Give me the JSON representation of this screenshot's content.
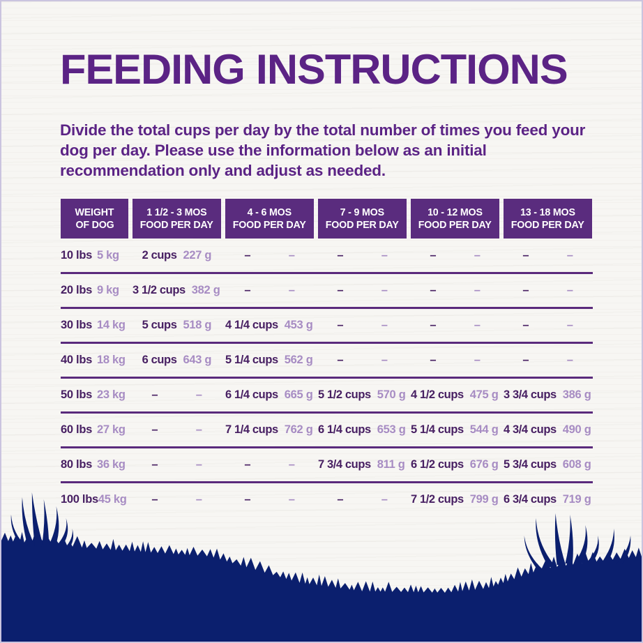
{
  "page": {
    "title": "FEEDING INSTRUCTIONS",
    "intro": "Divide the total cups per day by the total number of times you feed your dog per day. Please use the information below as an initial recommendation only and adjust as needed."
  },
  "colors": {
    "title_purple": "#5b2385",
    "header_bg": "#5a2c7e",
    "header_text": "#ffffff",
    "value_dark": "#482063",
    "value_light": "#a78cc3",
    "rule_line": "#5a2a7c",
    "grass_navy": "#0b1f6e",
    "background": "#f7f6f3"
  },
  "table": {
    "columns": [
      {
        "line1": "WEIGHT",
        "line2": "OF DOG"
      },
      {
        "line1": "1 1/2 - 3 MOS",
        "line2": "FOOD PER DAY"
      },
      {
        "line1": "4 - 6 MOS",
        "line2": "FOOD PER DAY"
      },
      {
        "line1": "7 - 9 MOS",
        "line2": "FOOD PER DAY"
      },
      {
        "line1": "10 - 12 MOS",
        "line2": "FOOD PER DAY"
      },
      {
        "line1": "13 - 18 MOS",
        "line2": "FOOD PER DAY"
      }
    ],
    "rows": [
      {
        "lbs": "10 lbs",
        "kg": "5 kg",
        "cells": [
          {
            "cups": "2 cups",
            "g": "227 g"
          },
          {
            "cups": "–",
            "g": "–"
          },
          {
            "cups": "–",
            "g": "–"
          },
          {
            "cups": "–",
            "g": "–"
          },
          {
            "cups": "–",
            "g": "–"
          }
        ]
      },
      {
        "lbs": "20 lbs",
        "kg": "9 kg",
        "cells": [
          {
            "cups": "3 1/2 cups",
            "g": "382 g"
          },
          {
            "cups": "–",
            "g": "–"
          },
          {
            "cups": "–",
            "g": "–"
          },
          {
            "cups": "–",
            "g": "–"
          },
          {
            "cups": "–",
            "g": "–"
          }
        ]
      },
      {
        "lbs": "30 lbs",
        "kg": "14 kg",
        "cells": [
          {
            "cups": "5 cups",
            "g": "518 g"
          },
          {
            "cups": "4 1/4 cups",
            "g": "453 g"
          },
          {
            "cups": "–",
            "g": "–"
          },
          {
            "cups": "–",
            "g": "–"
          },
          {
            "cups": "–",
            "g": "–"
          }
        ]
      },
      {
        "lbs": "40 lbs",
        "kg": "18 kg",
        "cells": [
          {
            "cups": "6 cups",
            "g": "643 g"
          },
          {
            "cups": "5 1/4 cups",
            "g": "562 g"
          },
          {
            "cups": "–",
            "g": "–"
          },
          {
            "cups": "–",
            "g": "–"
          },
          {
            "cups": "–",
            "g": "–"
          }
        ]
      },
      {
        "lbs": "50 lbs",
        "kg": "23 kg",
        "cells": [
          {
            "cups": "–",
            "g": "–"
          },
          {
            "cups": "6 1/4 cups",
            "g": "665 g"
          },
          {
            "cups": "5 1/2 cups",
            "g": "570 g"
          },
          {
            "cups": "4 1/2 cups",
            "g": "475 g"
          },
          {
            "cups": "3 3/4 cups",
            "g": "386 g"
          }
        ]
      },
      {
        "lbs": "60 lbs",
        "kg": "27 kg",
        "cells": [
          {
            "cups": "–",
            "g": "–"
          },
          {
            "cups": "7 1/4 cups",
            "g": "762 g"
          },
          {
            "cups": "6 1/4 cups",
            "g": "653 g"
          },
          {
            "cups": "5 1/4 cups",
            "g": "544 g"
          },
          {
            "cups": "4 3/4 cups",
            "g": "490 g"
          }
        ]
      },
      {
        "lbs": "80 lbs",
        "kg": "36 kg",
        "cells": [
          {
            "cups": "–",
            "g": "–"
          },
          {
            "cups": "–",
            "g": "–"
          },
          {
            "cups": "7 3/4 cups",
            "g": "811 g"
          },
          {
            "cups": "6 1/2 cups",
            "g": "676 g"
          },
          {
            "cups": "5 3/4 cups",
            "g": "608 g"
          }
        ]
      },
      {
        "lbs": "100 lbs",
        "kg": "45 kg",
        "cells": [
          {
            "cups": "–",
            "g": "–"
          },
          {
            "cups": "–",
            "g": "–"
          },
          {
            "cups": "–",
            "g": "–"
          },
          {
            "cups": "7 1/2 cups",
            "g": "799 g"
          },
          {
            "cups": "6 3/4 cups",
            "g": "719 g"
          }
        ]
      }
    ]
  }
}
